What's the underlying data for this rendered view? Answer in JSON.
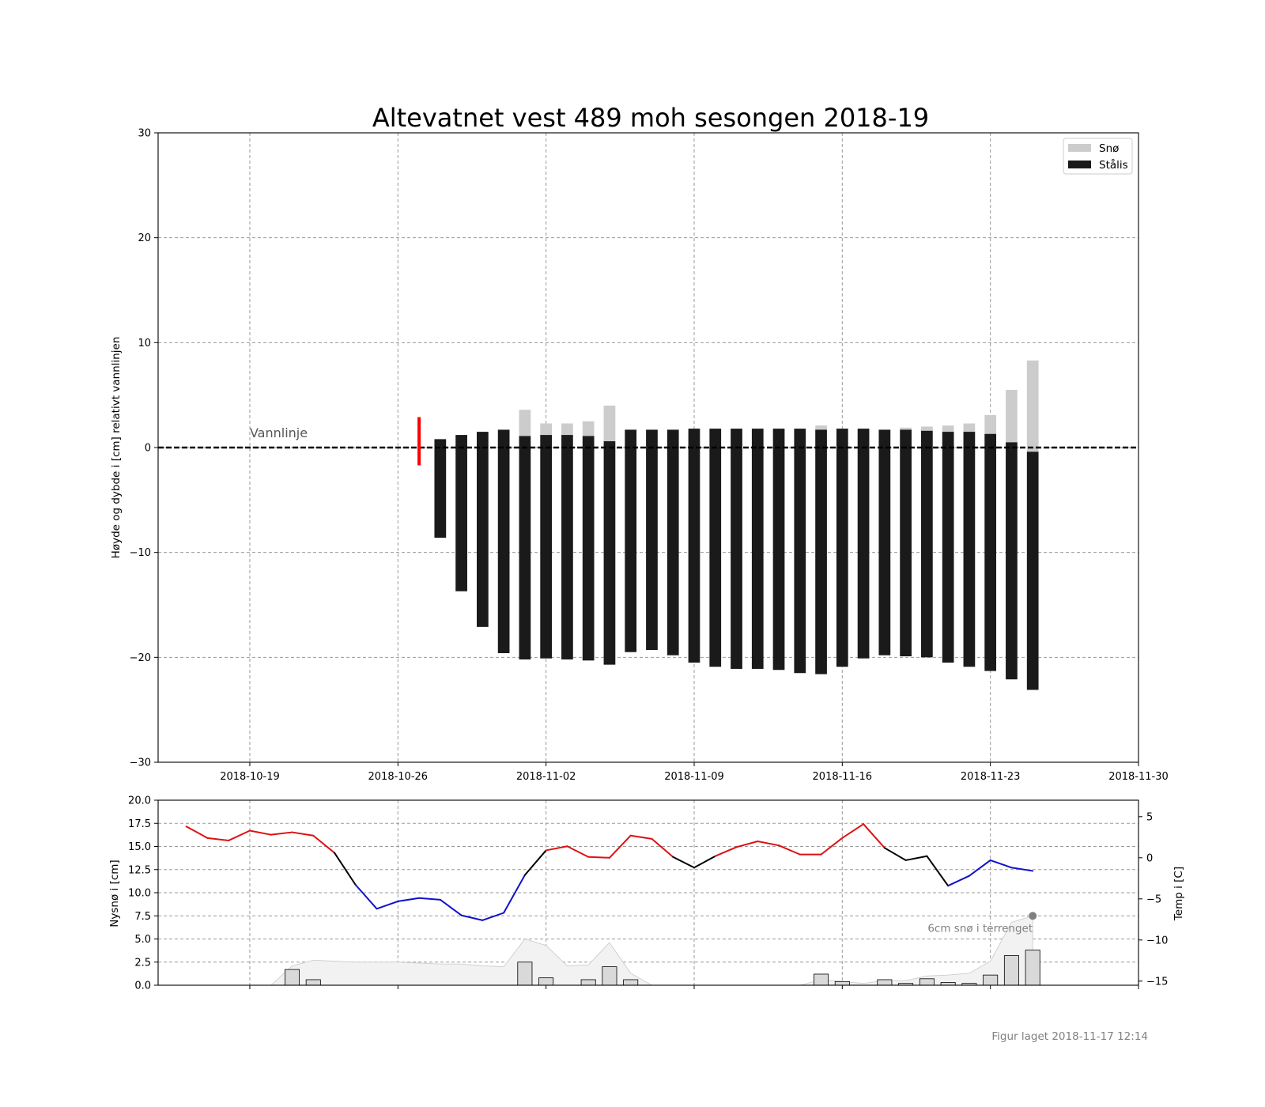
{
  "chart_data": [
    {
      "type": "bar",
      "title": "Altevatnet vest 489 moh sesongen 2018-19",
      "ylabel": "Høyde og dybde i [cm] relativt vannlinjen",
      "xlabel": "",
      "ylim": [
        -30,
        30
      ],
      "yticks": [
        -30,
        -20,
        -10,
        0,
        10,
        20,
        30
      ],
      "xlim_dates": [
        "2018-10-14T16:00",
        "2018-11-30T00:00"
      ],
      "xticks": [
        "2018-10-19",
        "2018-10-26",
        "2018-11-02",
        "2018-11-09",
        "2018-11-16",
        "2018-11-23",
        "2018-11-30"
      ],
      "grid": true,
      "legend_position": "top-right",
      "waterline": {
        "y": 0,
        "label": "Vannlinje"
      },
      "marker": {
        "date": "2018-10-27",
        "ymin": -1.7,
        "ymax": 2.9,
        "color": "#ff0000"
      },
      "series": [
        {
          "name": "Snø",
          "color": "#cccccc"
        },
        {
          "name": "Stålis",
          "color": "#1a1a1a"
        }
      ],
      "bars": [
        {
          "date": "2018-10-28",
          "ice_top": 0.8,
          "ice_bottom": -8.6,
          "snow_top": 0.8
        },
        {
          "date": "2018-10-29",
          "ice_top": 1.2,
          "ice_bottom": -13.7,
          "snow_top": 1.2
        },
        {
          "date": "2018-10-30",
          "ice_top": 1.5,
          "ice_bottom": -17.1,
          "snow_top": 1.5
        },
        {
          "date": "2018-10-31",
          "ice_top": 1.7,
          "ice_bottom": -19.6,
          "snow_top": 1.7
        },
        {
          "date": "2018-11-01",
          "ice_top": 1.1,
          "ice_bottom": -20.2,
          "snow_top": 3.6
        },
        {
          "date": "2018-11-02",
          "ice_top": 1.2,
          "ice_bottom": -20.1,
          "snow_top": 2.3
        },
        {
          "date": "2018-11-03",
          "ice_top": 1.2,
          "ice_bottom": -20.2,
          "snow_top": 2.3
        },
        {
          "date": "2018-11-04",
          "ice_top": 1.1,
          "ice_bottom": -20.3,
          "snow_top": 2.5
        },
        {
          "date": "2018-11-05",
          "ice_top": 0.6,
          "ice_bottom": -20.7,
          "snow_top": 4.0
        },
        {
          "date": "2018-11-06",
          "ice_top": 1.7,
          "ice_bottom": -19.5,
          "snow_top": 1.7
        },
        {
          "date": "2018-11-07",
          "ice_top": 1.7,
          "ice_bottom": -19.3,
          "snow_top": 1.7
        },
        {
          "date": "2018-11-08",
          "ice_top": 1.7,
          "ice_bottom": -19.8,
          "snow_top": 1.7
        },
        {
          "date": "2018-11-09",
          "ice_top": 1.8,
          "ice_bottom": -20.5,
          "snow_top": 1.8
        },
        {
          "date": "2018-11-10",
          "ice_top": 1.8,
          "ice_bottom": -20.9,
          "snow_top": 1.8
        },
        {
          "date": "2018-11-11",
          "ice_top": 1.8,
          "ice_bottom": -21.1,
          "snow_top": 1.8
        },
        {
          "date": "2018-11-12",
          "ice_top": 1.8,
          "ice_bottom": -21.1,
          "snow_top": 1.8
        },
        {
          "date": "2018-11-13",
          "ice_top": 1.8,
          "ice_bottom": -21.2,
          "snow_top": 1.8
        },
        {
          "date": "2018-11-14",
          "ice_top": 1.8,
          "ice_bottom": -21.5,
          "snow_top": 1.8
        },
        {
          "date": "2018-11-15",
          "ice_top": 1.7,
          "ice_bottom": -21.6,
          "snow_top": 2.1
        },
        {
          "date": "2018-11-16",
          "ice_top": 1.8,
          "ice_bottom": -20.9,
          "snow_top": 1.8
        },
        {
          "date": "2018-11-17",
          "ice_top": 1.8,
          "ice_bottom": -20.1,
          "snow_top": 1.8
        },
        {
          "date": "2018-11-18",
          "ice_top": 1.7,
          "ice_bottom": -19.8,
          "snow_top": 1.7
        },
        {
          "date": "2018-11-19",
          "ice_top": 1.7,
          "ice_bottom": -19.9,
          "snow_top": 1.9
        },
        {
          "date": "2018-11-20",
          "ice_top": 1.6,
          "ice_bottom": -20.0,
          "snow_top": 2.0
        },
        {
          "date": "2018-11-21",
          "ice_top": 1.5,
          "ice_bottom": -20.5,
          "snow_top": 2.1
        },
        {
          "date": "2018-11-22",
          "ice_top": 1.5,
          "ice_bottom": -20.9,
          "snow_top": 2.3
        },
        {
          "date": "2018-11-23",
          "ice_top": 1.3,
          "ice_bottom": -21.3,
          "snow_top": 3.1
        },
        {
          "date": "2018-11-24",
          "ice_top": 0.5,
          "ice_bottom": -22.1,
          "snow_top": 5.5
        },
        {
          "date": "2018-11-25",
          "ice_top": -0.4,
          "ice_bottom": -23.1,
          "snow_top": 8.3
        }
      ]
    },
    {
      "type": "bar+line",
      "ylabel": "Nysnø i [cm]",
      "ylabel_right": "Temp i [C]",
      "ylim": [
        0,
        20
      ],
      "yticks": [
        0.0,
        2.5,
        5.0,
        7.5,
        10.0,
        12.5,
        15.0,
        17.5,
        20.0
      ],
      "ytick_labels": [
        "0.0",
        "2.5",
        "5.0",
        "7.5",
        "10.0",
        "12.5",
        "15.0",
        "17.5",
        "20.0"
      ],
      "ylim_right": [
        -15.5,
        7
      ],
      "yticks_right": [
        -15,
        -10,
        -5,
        0,
        5
      ],
      "ytick_labels_right": [
        "−15",
        "−10",
        "−5",
        "0",
        "5"
      ],
      "grid": true,
      "annotation": {
        "text": "6cm snø i terrenget",
        "date": "2018-11-25",
        "value": 7.5
      },
      "colors": {
        "warm": "#dd1111",
        "cold": "#1111cc",
        "neutral": "#000000",
        "snow_area": "#f2f2f2",
        "snow_bar": "#d9d9d9",
        "annotation": "#808080"
      },
      "new_snow": [
        {
          "date": "2018-10-21",
          "value": 1.7
        },
        {
          "date": "2018-10-22",
          "value": 0.6
        },
        {
          "date": "2018-11-01",
          "value": 2.5
        },
        {
          "date": "2018-11-02",
          "value": 0.8
        },
        {
          "date": "2018-11-04",
          "value": 0.6
        },
        {
          "date": "2018-11-05",
          "value": 2.0
        },
        {
          "date": "2018-11-06",
          "value": 0.6
        },
        {
          "date": "2018-11-15",
          "value": 1.2
        },
        {
          "date": "2018-11-16",
          "value": 0.4
        },
        {
          "date": "2018-11-18",
          "value": 0.6
        },
        {
          "date": "2018-11-19",
          "value": 0.2
        },
        {
          "date": "2018-11-20",
          "value": 0.7
        },
        {
          "date": "2018-11-21",
          "value": 0.3
        },
        {
          "date": "2018-11-22",
          "value": 0.2
        },
        {
          "date": "2018-11-23",
          "value": 1.1
        },
        {
          "date": "2018-11-24",
          "value": 3.2
        },
        {
          "date": "2018-11-25",
          "value": 3.8
        }
      ],
      "snow_depth": [
        [
          "2018-10-20",
          0.0
        ],
        [
          "2018-10-21",
          2.1
        ],
        [
          "2018-10-22",
          2.7
        ],
        [
          "2018-10-23",
          2.6
        ],
        [
          "2018-10-24",
          2.5
        ],
        [
          "2018-10-25",
          2.5
        ],
        [
          "2018-10-26",
          2.5
        ],
        [
          "2018-10-27",
          2.4
        ],
        [
          "2018-10-28",
          2.3
        ],
        [
          "2018-10-29",
          2.3
        ],
        [
          "2018-10-30",
          2.1
        ],
        [
          "2018-10-31",
          2.0
        ],
        [
          "2018-11-01",
          5.0
        ],
        [
          "2018-11-02",
          4.3
        ],
        [
          "2018-11-03",
          2.1
        ],
        [
          "2018-11-04",
          2.2
        ],
        [
          "2018-11-05",
          4.6
        ],
        [
          "2018-11-06",
          1.3
        ],
        [
          "2018-11-07",
          0.0
        ],
        [
          "2018-11-14",
          0.0
        ],
        [
          "2018-11-15",
          0.6
        ],
        [
          "2018-11-16",
          0.4
        ],
        [
          "2018-11-17",
          0.2
        ],
        [
          "2018-11-18",
          0.5
        ],
        [
          "2018-11-19",
          0.5
        ],
        [
          "2018-11-20",
          1.0
        ],
        [
          "2018-11-21",
          1.1
        ],
        [
          "2018-11-22",
          1.3
        ],
        [
          "2018-11-23",
          2.6
        ],
        [
          "2018-11-24",
          6.8
        ],
        [
          "2018-11-25",
          7.5
        ]
      ],
      "temperature": [
        [
          "2018-10-16",
          3.8
        ],
        [
          "2018-10-17",
          2.4
        ],
        [
          "2018-10-18",
          2.1
        ],
        [
          "2018-10-19",
          3.3
        ],
        [
          "2018-10-20",
          2.8
        ],
        [
          "2018-10-21",
          3.1
        ],
        [
          "2018-10-22",
          2.7
        ],
        [
          "2018-10-23",
          0.6
        ],
        [
          "2018-10-24",
          -3.3
        ],
        [
          "2018-10-25",
          -6.2
        ],
        [
          "2018-10-26",
          -5.3
        ],
        [
          "2018-10-27",
          -4.9
        ],
        [
          "2018-10-28",
          -5.1
        ],
        [
          "2018-10-29",
          -7.0
        ],
        [
          "2018-10-30",
          -7.6
        ],
        [
          "2018-10-31",
          -6.7
        ],
        [
          "2018-11-01",
          -2.1
        ],
        [
          "2018-11-02",
          0.9
        ],
        [
          "2018-11-03",
          1.4
        ],
        [
          "2018-11-04",
          0.1
        ],
        [
          "2018-11-05",
          0.0
        ],
        [
          "2018-11-06",
          2.7
        ],
        [
          "2018-11-07",
          2.3
        ],
        [
          "2018-11-08",
          0.1
        ],
        [
          "2018-11-09",
          -1.2
        ],
        [
          "2018-11-10",
          0.2
        ],
        [
          "2018-11-11",
          1.3
        ],
        [
          "2018-11-12",
          2.0
        ],
        [
          "2018-11-13",
          1.5
        ],
        [
          "2018-11-14",
          0.4
        ],
        [
          "2018-11-15",
          0.4
        ],
        [
          "2018-11-16",
          2.4
        ],
        [
          "2018-11-17",
          4.1
        ],
        [
          "2018-11-18",
          1.2
        ],
        [
          "2018-11-19",
          -0.3
        ],
        [
          "2018-11-20",
          0.2
        ],
        [
          "2018-11-21",
          -3.4
        ],
        [
          "2018-11-22",
          -2.2
        ],
        [
          "2018-11-23",
          -0.3
        ],
        [
          "2018-11-24",
          -1.2
        ],
        [
          "2018-11-25",
          -1.6
        ]
      ]
    }
  ],
  "footer": "Figur laget 2018-11-17 12:14"
}
